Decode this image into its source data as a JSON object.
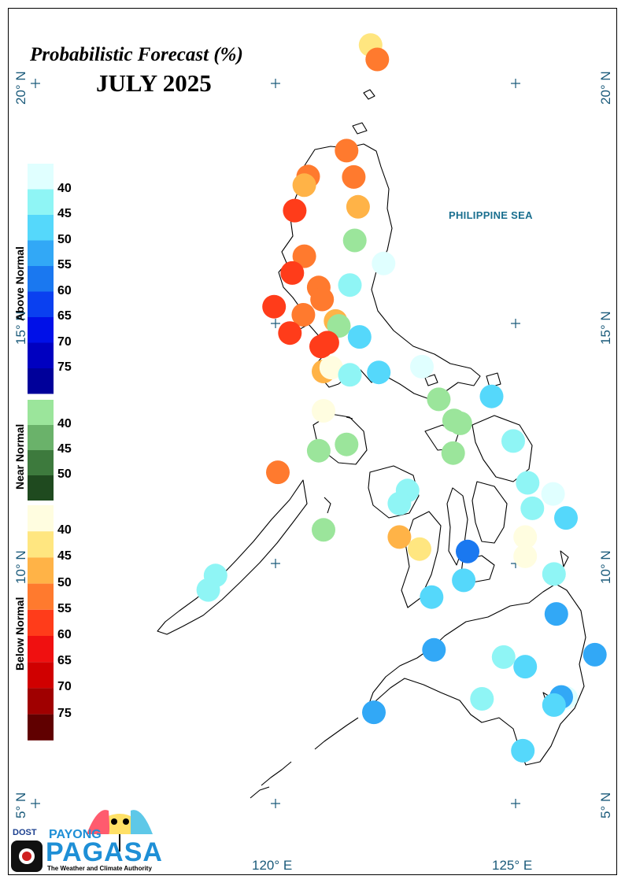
{
  "title": "Probabilistic Forecast (%)",
  "subtitle": "JULY 2025",
  "sea_label": "PHILIPPINE SEA",
  "latitude_labels": [
    "20° N",
    "15° N",
    "10° N",
    "5° N"
  ],
  "longitude_labels": [
    "120° E",
    "125° E"
  ],
  "legend": {
    "above_normal": {
      "label": "Above Normal",
      "ticks": [
        "40",
        "45",
        "50",
        "55",
        "60",
        "65",
        "70",
        "75"
      ],
      "colors": [
        "#e0ffff",
        "#8ff5f5",
        "#55d8fb",
        "#32a8f6",
        "#1a78f0",
        "#0a40f0",
        "#0010e8",
        "#0000c0",
        "#00009a"
      ]
    },
    "near_normal": {
      "label": "Near Normal",
      "ticks": [
        "40",
        "45",
        "50"
      ],
      "colors": [
        "#9be59b",
        "#6ab26a",
        "#3d7a3d",
        "#1f4a1f"
      ]
    },
    "below_normal": {
      "label": "Below Normal",
      "ticks": [
        "40",
        "45",
        "50",
        "55",
        "60",
        "65",
        "70",
        "75"
      ],
      "colors": [
        "#fffde0",
        "#ffe680",
        "#ffb347",
        "#ff7a2e",
        "#ff3c1a",
        "#f01010",
        "#d00000",
        "#a00000",
        "#600000"
      ]
    }
  },
  "logo": {
    "dost": "DOST",
    "payong": "PAYONG",
    "pagasa": "PAGASA",
    "tagline": "The Weather and Climate Authority"
  },
  "map_data": {
    "lon_range": [
      114,
      127.5
    ],
    "lat_range": [
      4.5,
      21.5
    ],
    "stations": [
      {
        "lon": 121.98,
        "lat": 20.8,
        "cat": "below",
        "level": 1
      },
      {
        "lon": 122.12,
        "lat": 20.5,
        "cat": "below",
        "level": 3
      },
      {
        "lon": 121.48,
        "lat": 18.6,
        "cat": "below",
        "level": 3
      },
      {
        "lon": 120.68,
        "lat": 18.06,
        "cat": "below",
        "level": 3
      },
      {
        "lon": 120.6,
        "lat": 17.88,
        "cat": "below",
        "level": 2
      },
      {
        "lon": 121.63,
        "lat": 18.05,
        "cat": "below",
        "level": 3
      },
      {
        "lon": 121.72,
        "lat": 17.43,
        "cat": "below",
        "level": 2
      },
      {
        "lon": 120.4,
        "lat": 17.35,
        "cat": "below",
        "level": 4
      },
      {
        "lon": 121.65,
        "lat": 16.73,
        "cat": "near",
        "level": 0
      },
      {
        "lon": 122.25,
        "lat": 16.25,
        "cat": "above",
        "level": 0
      },
      {
        "lon": 120.6,
        "lat": 16.4,
        "cat": "below",
        "level": 3
      },
      {
        "lon": 120.35,
        "lat": 16.05,
        "cat": "below",
        "level": 4
      },
      {
        "lon": 121.55,
        "lat": 15.8,
        "cat": "above",
        "level": 1
      },
      {
        "lon": 120.9,
        "lat": 15.75,
        "cat": "below",
        "level": 3
      },
      {
        "lon": 120.97,
        "lat": 15.5,
        "cat": "below",
        "level": 3
      },
      {
        "lon": 119.97,
        "lat": 15.35,
        "cat": "below",
        "level": 4
      },
      {
        "lon": 120.58,
        "lat": 15.18,
        "cat": "below",
        "level": 3
      },
      {
        "lon": 121.25,
        "lat": 15.05,
        "cat": "below",
        "level": 2
      },
      {
        "lon": 121.32,
        "lat": 14.95,
        "cat": "near",
        "level": 0
      },
      {
        "lon": 120.3,
        "lat": 14.8,
        "cat": "below",
        "level": 4
      },
      {
        "lon": 121.75,
        "lat": 14.72,
        "cat": "above",
        "level": 2
      },
      {
        "lon": 120.95,
        "lat": 14.52,
        "cat": "below",
        "level": 4
      },
      {
        "lon": 121.08,
        "lat": 14.6,
        "cat": "below",
        "level": 4
      },
      {
        "lon": 121.0,
        "lat": 14.0,
        "cat": "below",
        "level": 2
      },
      {
        "lon": 121.16,
        "lat": 14.08,
        "cat": "below",
        "level": 0
      },
      {
        "lon": 121.55,
        "lat": 13.93,
        "cat": "above",
        "level": 1
      },
      {
        "lon": 122.15,
        "lat": 13.98,
        "cat": "above",
        "level": 2
      },
      {
        "lon": 123.05,
        "lat": 14.1,
        "cat": "above",
        "level": 0
      },
      {
        "lon": 123.4,
        "lat": 13.42,
        "cat": "near",
        "level": 0
      },
      {
        "lon": 124.5,
        "lat": 13.48,
        "cat": "above",
        "level": 2
      },
      {
        "lon": 121.0,
        "lat": 13.18,
        "cat": "below",
        "level": 0
      },
      {
        "lon": 123.72,
        "lat": 12.98,
        "cat": "near",
        "level": 0
      },
      {
        "lon": 123.85,
        "lat": 12.92,
        "cat": "near",
        "level": 0
      },
      {
        "lon": 121.48,
        "lat": 12.48,
        "cat": "near",
        "level": 0
      },
      {
        "lon": 120.9,
        "lat": 12.35,
        "cat": "near",
        "level": 0
      },
      {
        "lon": 123.7,
        "lat": 12.3,
        "cat": "near",
        "level": 0
      },
      {
        "lon": 124.95,
        "lat": 12.55,
        "cat": "above",
        "level": 1
      },
      {
        "lon": 120.05,
        "lat": 11.9,
        "cat": "below",
        "level": 3
      },
      {
        "lon": 125.25,
        "lat": 11.68,
        "cat": "above",
        "level": 1
      },
      {
        "lon": 122.75,
        "lat": 11.52,
        "cat": "above",
        "level": 1
      },
      {
        "lon": 122.58,
        "lat": 11.25,
        "cat": "above",
        "level": 1
      },
      {
        "lon": 125.78,
        "lat": 11.45,
        "cat": "above",
        "level": 0
      },
      {
        "lon": 125.35,
        "lat": 11.15,
        "cat": "above",
        "level": 1
      },
      {
        "lon": 126.05,
        "lat": 10.95,
        "cat": "above",
        "level": 2
      },
      {
        "lon": 121.0,
        "lat": 10.7,
        "cat": "near",
        "level": 0
      },
      {
        "lon": 122.58,
        "lat": 10.55,
        "cat": "below",
        "level": 2
      },
      {
        "lon": 125.2,
        "lat": 10.55,
        "cat": "below",
        "level": 0
      },
      {
        "lon": 123.0,
        "lat": 10.3,
        "cat": "below",
        "level": 1
      },
      {
        "lon": 124.0,
        "lat": 10.25,
        "cat": "above",
        "level": 4
      },
      {
        "lon": 125.2,
        "lat": 10.15,
        "cat": "below",
        "level": 0
      },
      {
        "lon": 118.75,
        "lat": 9.75,
        "cat": "above",
        "level": 1
      },
      {
        "lon": 118.6,
        "lat": 9.45,
        "cat": "above",
        "level": 1
      },
      {
        "lon": 123.92,
        "lat": 9.65,
        "cat": "above",
        "level": 2
      },
      {
        "lon": 125.8,
        "lat": 9.78,
        "cat": "above",
        "level": 1
      },
      {
        "lon": 123.25,
        "lat": 9.3,
        "cat": "above",
        "level": 2
      },
      {
        "lon": 125.85,
        "lat": 8.95,
        "cat": "above",
        "level": 3
      },
      {
        "lon": 123.3,
        "lat": 8.2,
        "cat": "above",
        "level": 3
      },
      {
        "lon": 124.75,
        "lat": 8.05,
        "cat": "above",
        "level": 1
      },
      {
        "lon": 125.2,
        "lat": 7.85,
        "cat": "above",
        "level": 2
      },
      {
        "lon": 126.65,
        "lat": 8.1,
        "cat": "above",
        "level": 3
      },
      {
        "lon": 126.05,
        "lat": 7.2,
        "cat": "above",
        "level": 0
      },
      {
        "lon": 124.3,
        "lat": 7.18,
        "cat": "above",
        "level": 1
      },
      {
        "lon": 125.95,
        "lat": 7.22,
        "cat": "above",
        "level": 3
      },
      {
        "lon": 125.8,
        "lat": 7.05,
        "cat": "above",
        "level": 2
      },
      {
        "lon": 122.05,
        "lat": 6.9,
        "cat": "above",
        "level": 3
      },
      {
        "lon": 125.15,
        "lat": 6.1,
        "cat": "above",
        "level": 2
      }
    ]
  }
}
